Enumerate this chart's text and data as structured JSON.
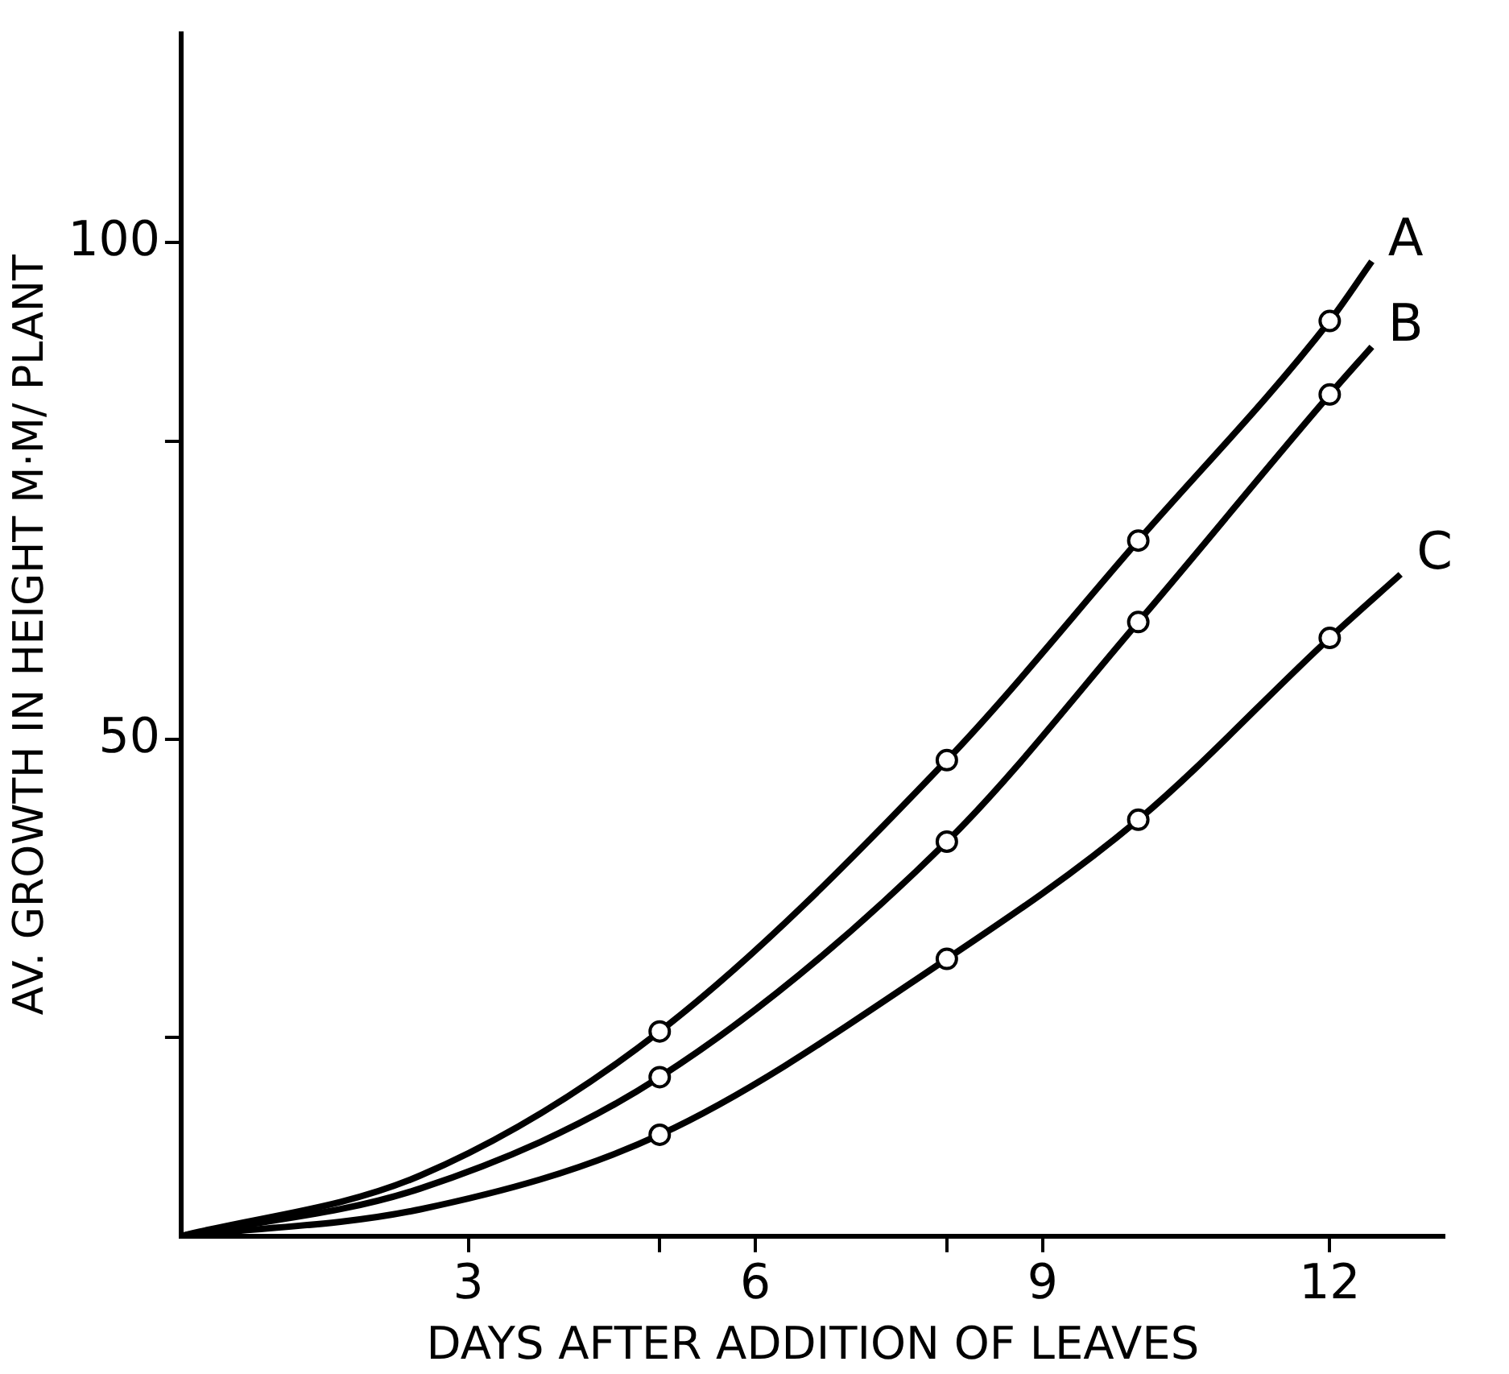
{
  "chart_data": {
    "type": "line",
    "xlabel": "DAYS AFTER ADDITION OF LEAVES",
    "ylabel": "AV. GROWTH IN HEIGHT M·M/ PLANT",
    "xlim": [
      0,
      13.2
    ],
    "xticks": [
      3,
      {
        "value": 5,
        "label": null
      },
      6,
      {
        "value": 8,
        "label": null
      },
      9,
      12
    ],
    "ylim": [
      0,
      121
    ],
    "yticks": [
      {
        "value": 20,
        "label": null
      },
      50,
      {
        "value": 80,
        "label": null
      },
      100
    ],
    "grid": false,
    "legend": false,
    "line_style": "solid",
    "marker": "none",
    "series": [
      {
        "name": "A",
        "color": "#000000",
        "x": [
          0,
          2.5,
          5,
          8,
          10,
          12,
          12.44
        ],
        "values": [
          0,
          6.1,
          20.6,
          47.9,
          70.0,
          92.1,
          98.1
        ]
      },
      {
        "name": "B",
        "color": "#000000",
        "x": [
          0,
          2.5,
          5,
          8,
          10,
          12,
          12.44
        ],
        "values": [
          0,
          4.8,
          16.0,
          39.7,
          61.8,
          84.7,
          89.5
        ]
      },
      {
        "name": "C",
        "color": "#000000",
        "x": [
          0,
          2.5,
          5,
          8,
          10,
          12,
          12.74
        ],
        "values": [
          0,
          2.7,
          10.2,
          27.9,
          41.9,
          60.2,
          66.6
        ]
      },
      {
        "type": "scatter",
        "marker": "circle",
        "color": "#000000",
        "x": [
          5,
          8,
          10,
          12,
          5,
          8,
          10,
          12,
          5,
          8,
          10,
          12
        ],
        "values": [
          20.6,
          47.9,
          70.0,
          92.1,
          16.0,
          39.7,
          61.8,
          84.7,
          10.2,
          27.9,
          41.9,
          60.2
        ]
      }
    ]
  }
}
